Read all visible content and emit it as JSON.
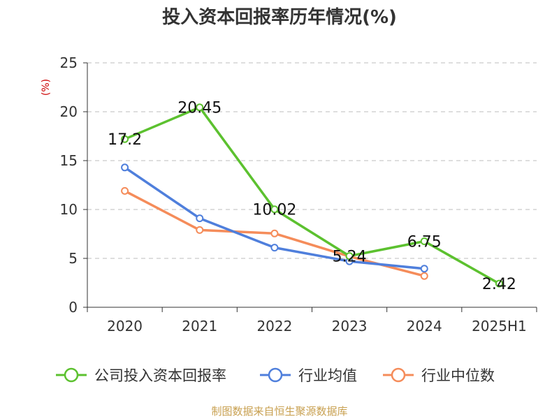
{
  "chart_data": {
    "type": "line",
    "title": "投入资本回报率历年情况(%)",
    "ylabel": "(%)",
    "xlabel": "",
    "categories": [
      "2020",
      "2021",
      "2022",
      "2023",
      "2024",
      "2025H1"
    ],
    "ylim": [
      0,
      25
    ],
    "yticks": [
      0,
      5,
      10,
      15,
      20,
      25
    ],
    "grid": true,
    "legend_position": "bottom",
    "series": [
      {
        "name": "公司投入资本回报率",
        "color": "#5cc12f",
        "values": [
          17.2,
          20.45,
          10.02,
          5.24,
          6.75,
          2.42
        ],
        "labels": [
          "17.2",
          "20.45",
          "10.02",
          "5.24",
          "6.75",
          "2.42"
        ]
      },
      {
        "name": "行业均值",
        "color": "#4f7fdc",
        "values": [
          14.3,
          9.1,
          6.1,
          4.7,
          3.95,
          null
        ]
      },
      {
        "name": "行业中位数",
        "color": "#f58c5a",
        "values": [
          11.9,
          7.9,
          7.55,
          5.2,
          3.2,
          null
        ]
      }
    ]
  },
  "source": "制图数据来自恒生聚源数据库"
}
